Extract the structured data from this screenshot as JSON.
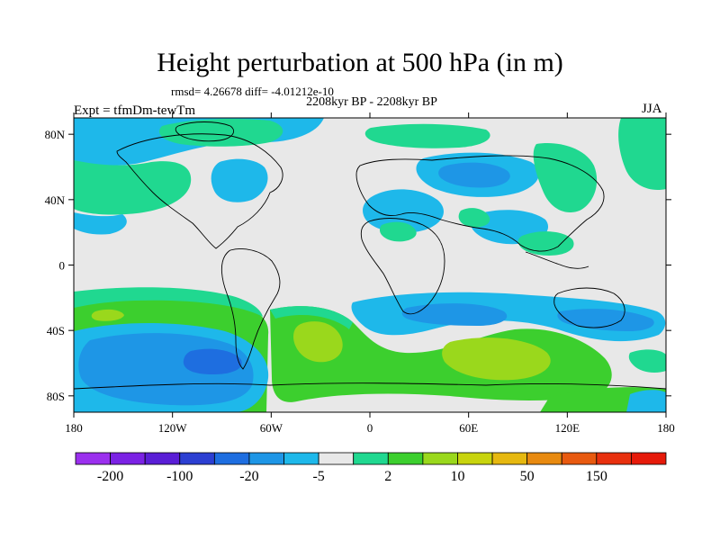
{
  "title": "Height perturbation at 500 hPa (in m)",
  "stats": "rmsd= 4.26678 diff= -4.01212e-10",
  "period": "2208kyr BP - 2208kyr BP",
  "experiment": "Expt = tfmDm-tewTm",
  "season": "JJA",
  "map": {
    "lon_ticks": [
      "180",
      "120W",
      "60W",
      "0",
      "60E",
      "120E",
      "180"
    ],
    "lat_ticks": [
      "80N",
      "40N",
      "0",
      "40S",
      "80S"
    ],
    "background_color": "#e8e8e8"
  },
  "colorbar": {
    "colors": [
      "#9b30ee",
      "#7b22e4",
      "#5a1ed6",
      "#2c3fd2",
      "#1e6ee0",
      "#1e96e6",
      "#1eb8ea",
      "#e8e8e8",
      "#20d890",
      "#3ccf2e",
      "#9ad81c",
      "#c8d40e",
      "#e6b810",
      "#e88a10",
      "#e85a10",
      "#e8300e",
      "#e61a0a"
    ],
    "labels": [
      "-200",
      "-100",
      "-20",
      "-5",
      "2",
      "10",
      "50",
      "150"
    ]
  },
  "levels": {
    "weak_negative": "#1eb8ea",
    "negative": "#1e96e6",
    "strong_negative": "#1e6ee0",
    "weak_positive": "#20d890",
    "positive": "#3ccf2e",
    "strong_positive": "#9ad81c",
    "stronger_positive": "#c8d40e"
  }
}
